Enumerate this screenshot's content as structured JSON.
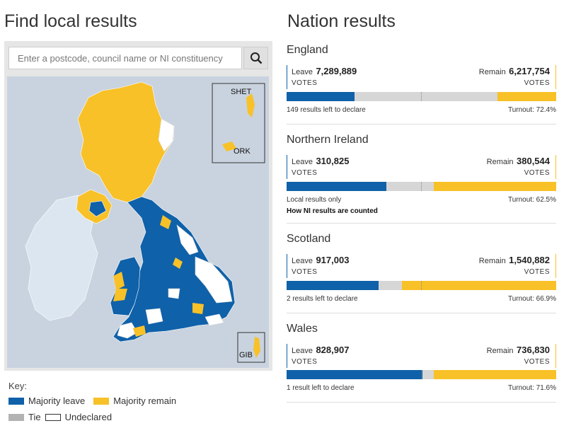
{
  "local": {
    "title": "Find local results",
    "search_placeholder": "Enter a postcode, council name or NI constituency",
    "inset_labels": [
      "SHET",
      "ORK",
      "GIB"
    ]
  },
  "key": {
    "title": "Key:",
    "majority_leave": "Majority leave",
    "majority_remain": "Majority remain",
    "tie": "Tie",
    "undeclared": "Undeclared"
  },
  "colors": {
    "leave": "#0f61a9",
    "remain": "#f8c128",
    "tie": "#b3b3b3",
    "undeclared": "#ffffff",
    "sea": "#c9d3df",
    "ireland": "#dce6f0"
  },
  "nations": {
    "title": "Nation results",
    "items": [
      {
        "name": "England",
        "leave_label": "Leave",
        "leave": "7,289,889",
        "remain_label": "Remain",
        "remain": "6,217,754",
        "votes": "VOTES",
        "leave_frac": 0.253,
        "remain_frac": 0.219,
        "foot_left": "149 results left to declare",
        "turnout": "Turnout: 72.4%"
      },
      {
        "name": "Northern Ireland",
        "leave_label": "Leave",
        "leave": "310,825",
        "remain_label": "Remain",
        "remain": "380,544",
        "votes": "VOTES",
        "leave_frac": 0.37,
        "remain_frac": 0.453,
        "foot_left": "Local results only",
        "link": "How NI results are counted",
        "turnout": "Turnout: 62.5%"
      },
      {
        "name": "Scotland",
        "leave_label": "Leave",
        "leave": "917,003",
        "remain_label": "Remain",
        "remain": "1,540,882",
        "votes": "VOTES",
        "leave_frac": 0.341,
        "remain_frac": 0.572,
        "foot_left": "2 results left to declare",
        "turnout": "Turnout: 66.9%"
      },
      {
        "name": "Wales",
        "leave_label": "Leave",
        "leave": "828,907",
        "remain_label": "Remain",
        "remain": "736,830",
        "votes": "VOTES",
        "leave_frac": 0.504,
        "remain_frac": 0.454,
        "foot_left": "1 result left to declare",
        "turnout": "Turnout: 71.6%"
      }
    ]
  }
}
